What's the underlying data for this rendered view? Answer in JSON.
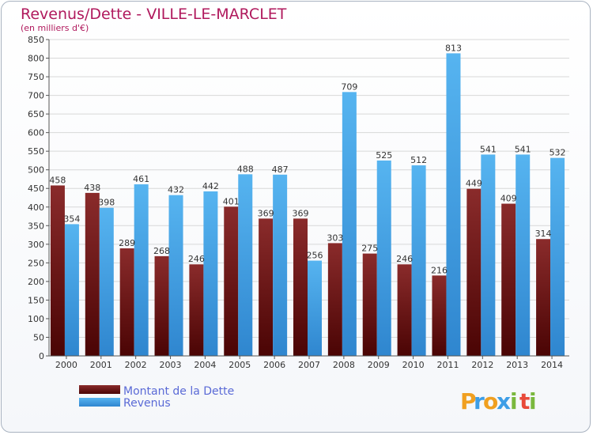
{
  "chart_data": {
    "type": "bar",
    "title": "Revenus/Dette - VILLE-LE-MARCLET",
    "subtitle": "(en milliers d'€)",
    "categories": [
      "2000",
      "2001",
      "2002",
      "2003",
      "2004",
      "2005",
      "2006",
      "2007",
      "2008",
      "2009",
      "2010",
      "2011",
      "2012",
      "2013",
      "2014"
    ],
    "series": [
      {
        "name": "Montant de la Dette",
        "color": "#6e1111",
        "values": [
          458,
          438,
          289,
          268,
          246,
          401,
          369,
          369,
          303,
          275,
          246,
          216,
          449,
          409,
          314
        ]
      },
      {
        "name": "Revenus",
        "color": "#3d9ee6",
        "values": [
          354,
          398,
          461,
          432,
          442,
          488,
          487,
          256,
          709,
          525,
          512,
          813,
          541,
          541,
          532
        ]
      }
    ],
    "ylim": [
      0,
      850
    ],
    "ytick_step": 50,
    "grid": true,
    "legend_position": "bottom-left"
  },
  "logo": {
    "letters": [
      "P",
      "r",
      "o",
      "x",
      "i",
      "t",
      "i"
    ],
    "colors": [
      "#f0a020",
      "#3d9ee6",
      "#f0a020",
      "#3d9ee6",
      "#7ab83d",
      "#e84a3a",
      "#7ab83d"
    ]
  }
}
